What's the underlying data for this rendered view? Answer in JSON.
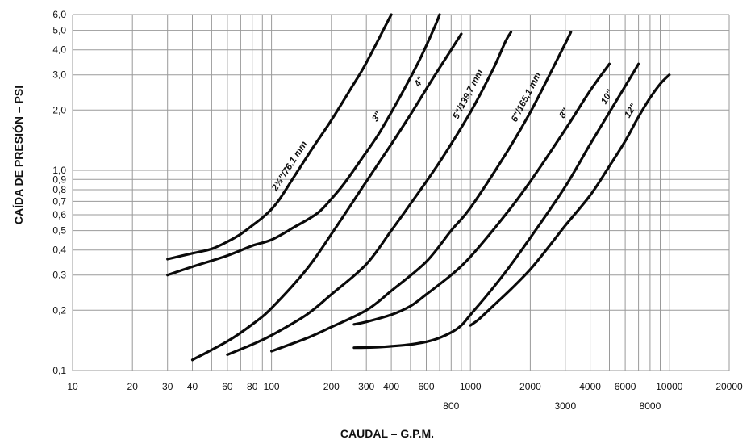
{
  "chart_data": {
    "type": "line",
    "xscale": "log",
    "yscale": "log",
    "xlim": [
      10,
      20000
    ],
    "ylim": [
      0.1,
      6.0
    ],
    "grid": true,
    "xlabel": "CAUDAL – G.P.M.",
    "ylabel": "CAÍDA DE PRESIÓN – PSI",
    "x_gridlines": [
      10,
      20,
      30,
      40,
      50,
      60,
      70,
      80,
      90,
      100,
      200,
      300,
      400,
      500,
      600,
      700,
      800,
      900,
      1000,
      2000,
      3000,
      4000,
      5000,
      6000,
      7000,
      8000,
      9000,
      10000,
      20000
    ],
    "y_gridlines": [
      0.1,
      0.2,
      0.3,
      0.4,
      0.5,
      0.6,
      0.7,
      0.8,
      0.9,
      1.0,
      2.0,
      3.0,
      4.0,
      5.0,
      6.0
    ],
    "x_tick_labels_top_row": [
      {
        "value": 10,
        "label": "10"
      },
      {
        "value": 20,
        "label": "20"
      },
      {
        "value": 30,
        "label": "30"
      },
      {
        "value": 40,
        "label": "40"
      },
      {
        "value": 60,
        "label": "60"
      },
      {
        "value": 80,
        "label": "80"
      },
      {
        "value": 100,
        "label": "100"
      },
      {
        "value": 200,
        "label": "200"
      },
      {
        "value": 300,
        "label": "300"
      },
      {
        "value": 400,
        "label": "400"
      },
      {
        "value": 600,
        "label": "600"
      },
      {
        "value": 1000,
        "label": "1000"
      },
      {
        "value": 2000,
        "label": "2000"
      },
      {
        "value": 4000,
        "label": "4000"
      },
      {
        "value": 6000,
        "label": "6000"
      },
      {
        "value": 10000,
        "label": "10000"
      },
      {
        "value": 20000,
        "label": "20000"
      }
    ],
    "x_tick_labels_bottom_row": [
      {
        "value": 800,
        "label": "800"
      },
      {
        "value": 3000,
        "label": "3000"
      },
      {
        "value": 8000,
        "label": "8000"
      }
    ],
    "y_tick_labels": [
      {
        "value": 0.1,
        "label": "0,1"
      },
      {
        "value": 0.2,
        "label": "0,2"
      },
      {
        "value": 0.3,
        "label": "0,3"
      },
      {
        "value": 0.4,
        "label": "0,4"
      },
      {
        "value": 0.5,
        "label": "0,5"
      },
      {
        "value": 0.6,
        "label": "0,6"
      },
      {
        "value": 0.7,
        "label": "0,7"
      },
      {
        "value": 0.8,
        "label": "0,8"
      },
      {
        "value": 0.9,
        "label": "0,9"
      },
      {
        "value": 1.0,
        "label": "1,0"
      },
      {
        "value": 2.0,
        "label": "2,0"
      },
      {
        "value": 3.0,
        "label": "3,0"
      },
      {
        "value": 4.0,
        "label": "4,0"
      },
      {
        "value": 5.0,
        "label": "5,0"
      },
      {
        "value": 6.0,
        "label": "6,0"
      }
    ],
    "series": [
      {
        "name": "2½\"/76,1 mm",
        "points": [
          [
            30,
            0.36
          ],
          [
            40,
            0.385
          ],
          [
            50,
            0.405
          ],
          [
            60,
            0.44
          ],
          [
            70,
            0.48
          ],
          [
            80,
            0.53
          ],
          [
            90,
            0.58
          ],
          [
            100,
            0.64
          ],
          [
            110,
            0.72
          ],
          [
            130,
            0.93
          ],
          [
            160,
            1.28
          ],
          [
            200,
            1.78
          ],
          [
            250,
            2.55
          ],
          [
            300,
            3.45
          ],
          [
            400,
            6.0
          ]
        ]
      },
      {
        "name": "3\"",
        "points": [
          [
            30,
            0.3
          ],
          [
            40,
            0.33
          ],
          [
            60,
            0.375
          ],
          [
            80,
            0.42
          ],
          [
            100,
            0.45
          ],
          [
            130,
            0.52
          ],
          [
            170,
            0.61
          ],
          [
            200,
            0.72
          ],
          [
            230,
            0.85
          ],
          [
            280,
            1.12
          ],
          [
            350,
            1.55
          ],
          [
            450,
            2.4
          ],
          [
            550,
            3.5
          ],
          [
            650,
            5.0
          ],
          [
            700,
            6.0
          ]
        ]
      },
      {
        "name": "4\"",
        "points": [
          [
            40,
            0.113
          ],
          [
            60,
            0.14
          ],
          [
            80,
            0.17
          ],
          [
            100,
            0.205
          ],
          [
            150,
            0.32
          ],
          [
            200,
            0.48
          ],
          [
            300,
            0.88
          ],
          [
            400,
            1.35
          ],
          [
            500,
            1.9
          ],
          [
            600,
            2.55
          ],
          [
            700,
            3.25
          ],
          [
            800,
            4.0
          ],
          [
            900,
            4.8
          ]
        ]
      },
      {
        "name": "5\"/139,7 mm",
        "points": [
          [
            60,
            0.12
          ],
          [
            80,
            0.135
          ],
          [
            100,
            0.15
          ],
          [
            150,
            0.19
          ],
          [
            200,
            0.24
          ],
          [
            300,
            0.34
          ],
          [
            400,
            0.5
          ],
          [
            500,
            0.68
          ],
          [
            700,
            1.1
          ],
          [
            1000,
            1.95
          ],
          [
            1300,
            3.2
          ],
          [
            1500,
            4.4
          ],
          [
            1600,
            4.9
          ]
        ]
      },
      {
        "name": "6\"/165,1 mm",
        "points": [
          [
            100,
            0.125
          ],
          [
            150,
            0.145
          ],
          [
            200,
            0.165
          ],
          [
            300,
            0.2
          ],
          [
            400,
            0.25
          ],
          [
            600,
            0.35
          ],
          [
            800,
            0.5
          ],
          [
            1000,
            0.65
          ],
          [
            1500,
            1.2
          ],
          [
            2000,
            1.95
          ],
          [
            2500,
            3.0
          ],
          [
            3000,
            4.3
          ],
          [
            3200,
            4.9
          ]
        ]
      },
      {
        "name": "8\"",
        "points": [
          [
            260,
            0.17
          ],
          [
            300,
            0.175
          ],
          [
            400,
            0.19
          ],
          [
            500,
            0.21
          ],
          [
            600,
            0.24
          ],
          [
            800,
            0.3
          ],
          [
            1000,
            0.37
          ],
          [
            1500,
            0.6
          ],
          [
            2000,
            0.88
          ],
          [
            3000,
            1.6
          ],
          [
            4000,
            2.5
          ],
          [
            5000,
            3.4
          ]
        ]
      },
      {
        "name": "10\"",
        "points": [
          [
            260,
            0.13
          ],
          [
            350,
            0.131
          ],
          [
            500,
            0.135
          ],
          [
            650,
            0.142
          ],
          [
            800,
            0.155
          ],
          [
            900,
            0.168
          ],
          [
            1000,
            0.19
          ],
          [
            1200,
            0.235
          ],
          [
            1500,
            0.31
          ],
          [
            2000,
            0.46
          ],
          [
            3000,
            0.83
          ],
          [
            4000,
            1.35
          ],
          [
            5000,
            1.95
          ],
          [
            6500,
            3.0
          ],
          [
            7000,
            3.4
          ]
        ]
      },
      {
        "name": "12\"",
        "points": [
          [
            1000,
            0.168
          ],
          [
            1100,
            0.18
          ],
          [
            1300,
            0.21
          ],
          [
            1600,
            0.255
          ],
          [
            2000,
            0.32
          ],
          [
            2500,
            0.42
          ],
          [
            3000,
            0.53
          ],
          [
            4000,
            0.75
          ],
          [
            5000,
            1.05
          ],
          [
            6000,
            1.4
          ],
          [
            7000,
            1.85
          ],
          [
            8000,
            2.3
          ],
          [
            9000,
            2.7
          ],
          [
            10000,
            3.0
          ]
        ]
      }
    ]
  }
}
